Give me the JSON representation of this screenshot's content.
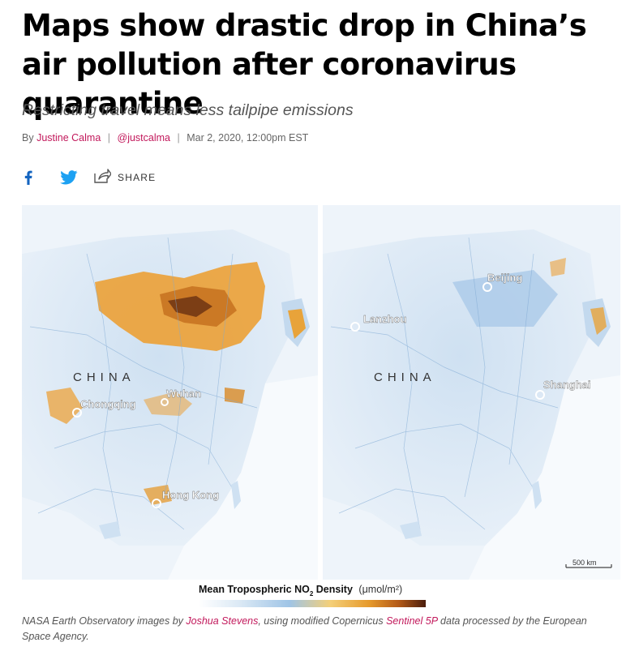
{
  "article": {
    "headline": "Maps show drastic drop in China’s air pollution after coronavirus quarantine",
    "dek": "Restricting travel means less tailpipe emissions",
    "byline": {
      "prefix": "By",
      "author": "Justine Calma",
      "handle": "@justcalma",
      "date": "Mar 2, 2020, 12:00pm EST"
    },
    "share": {
      "facebook_icon": "facebook-icon",
      "twitter_icon": "twitter-icon",
      "share_icon": "share-icon",
      "share_label": "SHARE"
    }
  },
  "map": {
    "left_panel": {
      "country_label": "CHINA",
      "cities": [
        "Chongqing",
        "Wuhan",
        "Hong Kong"
      ]
    },
    "right_panel": {
      "country_label": "CHINA",
      "cities": [
        "Beijing",
        "Lanzhou",
        "Shanghai"
      ],
      "scale_label": "500 km"
    },
    "legend": {
      "title": "Mean Tropospheric NO",
      "subscript": "2",
      "title_suffix": " Density",
      "unit": "(μmol/m²)",
      "colors": [
        "#ffffff",
        "#dbe9f5",
        "#9fc4e6",
        "#f4cf78",
        "#e69a2c",
        "#b45a17",
        "#4a1d0c"
      ]
    }
  },
  "caption": {
    "part1": "NASA Earth Observatory images by ",
    "link1": "Joshua Stevens",
    "part2": ", using modified Copernicus ",
    "link2": "Sentinel 5P",
    "part3": " data processed by the European Space Agency."
  }
}
